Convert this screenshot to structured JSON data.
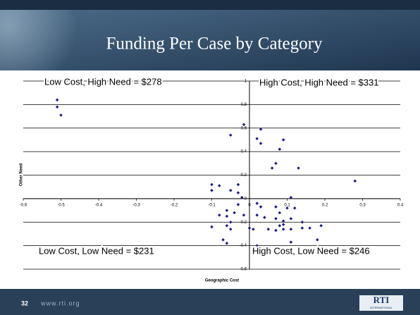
{
  "chart_data": {
    "type": "scatter",
    "title": "Funding Per Case by Category",
    "xlabel": "Geographic Cost",
    "ylabel": "Other Need",
    "annotations": [
      "Low Cost, High Need = $278",
      "High Cost, High Need = $331",
      "Low Cost, Low Need = $231",
      "High Cost, Low Need = $246"
    ],
    "color": "#1a1a80",
    "grid": true,
    "xlim": [
      -0.6,
      0.4
    ],
    "xticks": [
      -0.6,
      -0.5,
      -0.4,
      -0.3,
      -0.2,
      -0.1,
      0,
      0.1,
      0.2,
      0.3,
      0.4
    ],
    "ylim": [
      -0.6,
      1
    ],
    "yticks": [
      -0.6,
      -0.4,
      -0.2,
      0,
      0.2,
      0.4,
      0.6,
      0.8,
      1
    ],
    "x": [
      -0.51,
      -0.51,
      -0.5,
      -0.015,
      -0.05,
      0.03,
      0.02,
      0.03,
      0.09,
      0.08,
      0.07,
      0.06,
      0.13,
      0.28,
      -0.1,
      -0.08,
      -0.1,
      -0.05,
      -0.03,
      -0.03,
      -0.02,
      -0.03,
      0.02,
      0.03,
      0.11,
      0.1,
      0.07,
      0.08,
      0.12,
      -0.06,
      -0.04,
      -0.06,
      -0.08,
      -0.05,
      -0.06,
      -0.05,
      -0.1,
      -0.015,
      0.02,
      0.04,
      0.07,
      0.09,
      0.11,
      0.0,
      0.01,
      0.05,
      0.08,
      0.09,
      0.11,
      0.14,
      0.09,
      0.16,
      0.19,
      0.14,
      0.07,
      -0.07,
      -0.06,
      0.02,
      0.03,
      0.18,
      0.14,
      0.11
    ],
    "values": [
      0.84,
      0.78,
      0.71,
      0.63,
      0.54,
      0.59,
      0.51,
      0.47,
      0.5,
      0.42,
      0.3,
      0.26,
      0.26,
      0.15,
      0.12,
      0.11,
      0.07,
      0.07,
      0.12,
      0.05,
      0.01,
      -0.05,
      -0.04,
      -0.07,
      0.01,
      -0.08,
      -0.07,
      -0.12,
      -0.08,
      -0.1,
      -0.12,
      -0.15,
      -0.14,
      -0.2,
      -0.23,
      -0.26,
      -0.24,
      -0.14,
      -0.14,
      -0.16,
      -0.17,
      -0.19,
      -0.17,
      -0.25,
      -0.26,
      -0.26,
      -0.23,
      -0.26,
      -0.26,
      -0.25,
      -0.22,
      -0.25,
      -0.23,
      -0.2,
      -0.27,
      -0.35,
      -0.38,
      -0.4,
      -0.43,
      -0.35,
      -0.47,
      -0.37
    ]
  },
  "footer": {
    "page": "32",
    "url": "www.rti.org",
    "logo": "RTI",
    "logo_sub": "INTERNATIONAL"
  }
}
